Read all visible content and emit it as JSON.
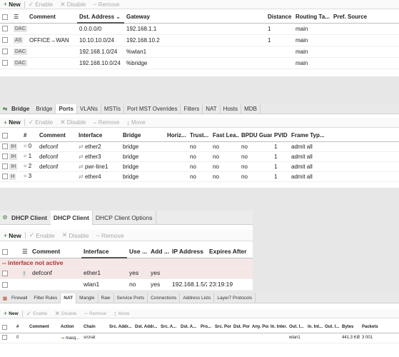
{
  "routes": {
    "toolbar": {
      "new": "New",
      "enable": "Enable",
      "disable": "Disable",
      "remove": "Remove"
    },
    "columns": [
      "",
      "",
      "Comment",
      "Dst. Address",
      "Gateway",
      "Distance",
      "Routing Ta...",
      "Pref. Source"
    ],
    "rows": [
      {
        "flag": "DAC",
        "comment": "",
        "dst": "0.0.0.0/0",
        "gateway": "192.168.1.1",
        "distance": "1",
        "table": "main",
        "pref": ""
      },
      {
        "flag": "AS",
        "comment": "OFFICE→WAN",
        "dst": "10.10.10.0/24",
        "gateway": "192.168.10.2",
        "distance": "1",
        "table": "main",
        "pref": ""
      },
      {
        "flag": "DAC",
        "comment": "",
        "dst": "192.168.1.0/24",
        "gateway": "%wlan1",
        "distance": "",
        "table": "main",
        "pref": ""
      },
      {
        "flag": "DAC",
        "comment": "",
        "dst": "192.168.10.0/24",
        "gateway": "%bridge",
        "distance": "",
        "table": "main",
        "pref": ""
      }
    ]
  },
  "bridge": {
    "title": "Bridge",
    "tabs": [
      "Bridge",
      "Ports",
      "VLANs",
      "MSTIs",
      "Port MST Overrides",
      "Filters",
      "NAT",
      "Hosts",
      "MDB"
    ],
    "active_tab": 1,
    "toolbar": {
      "new": "New",
      "enable": "Enable",
      "disable": "Disable",
      "remove": "Remove",
      "move": "Move"
    },
    "columns": [
      "",
      "#",
      "Comment",
      "Interface",
      "Bridge",
      "Horiz...",
      "Trust...",
      "Fast Lea...",
      "BPDU Guard",
      "PVID",
      "Frame Typ..."
    ],
    "rows": [
      {
        "flag": "IH",
        "num": "0",
        "comment": "defconf",
        "iface": "ether2",
        "bridge": "bridge",
        "horiz": "",
        "trust": "no",
        "fast": "no",
        "bpdu": "no",
        "pvid": "1",
        "frame": "admit all"
      },
      {
        "flag": "IH",
        "num": "1",
        "comment": "defconf",
        "iface": "ether3",
        "bridge": "bridge",
        "horiz": "",
        "trust": "no",
        "fast": "no",
        "bpdu": "no",
        "pvid": "1",
        "frame": "admit all"
      },
      {
        "flag": "IH",
        "num": "2",
        "comment": "defconf",
        "iface": "pwr-line1",
        "bridge": "bridge",
        "horiz": "",
        "trust": "no",
        "fast": "no",
        "bpdu": "no",
        "pvid": "1",
        "frame": "admit all"
      },
      {
        "flag": "H",
        "num": "3",
        "comment": "",
        "iface": "ether4",
        "bridge": "bridge",
        "horiz": "",
        "trust": "no",
        "fast": "no",
        "bpdu": "no",
        "pvid": "1",
        "frame": "admit all"
      }
    ]
  },
  "dhcp": {
    "title": "DHCP Client",
    "tabs": [
      "DHCP Client",
      "DHCP Client Options"
    ],
    "toolbar": {
      "new": "New",
      "enable": "Enable",
      "disable": "Disable",
      "remove": "Remove"
    },
    "columns": [
      "",
      "",
      "Comment",
      "Interface",
      "Use ...",
      "Add ...",
      "IP Address",
      "Expires After"
    ],
    "inactive_label": "-- interface not active",
    "rows": [
      {
        "flag": "I",
        "comment": "defconf",
        "iface": "ether1",
        "use": "yes",
        "add": "yes",
        "ip": "",
        "expires": "",
        "inactive": true
      },
      {
        "flag": "",
        "comment": "",
        "iface": "wlan1",
        "use": "no",
        "add": "yes",
        "ip": "192.168.1.5/24",
        "expires": "23:19:19",
        "inactive": false
      }
    ]
  },
  "firewall": {
    "title": "Firewall",
    "tabs": [
      "Filter Rules",
      "NAT",
      "Mangle",
      "Raw",
      "Service Ports",
      "Connections",
      "Address Lists",
      "Layer7 Protocols"
    ],
    "active_tab": 1,
    "toolbar": {
      "new": "New",
      "enable": "Enable",
      "disable": "Disable",
      "remove": "Remove",
      "move": "Move"
    },
    "columns": [
      "",
      "#",
      "Comment",
      "Action",
      "Chain",
      "Src. Addr...",
      "Dst. Addr...",
      "Src. A...",
      "Dst. A...",
      "Pro...",
      "Src. Port",
      "Dst. Port",
      "Any. Port",
      "In. Inter...",
      "Out. I...",
      "In. Int...",
      "Out. I...",
      "Bytes",
      "Packets"
    ],
    "rows": [
      {
        "num": "0",
        "comment": "",
        "action": "masq...",
        "chain": "srcnat",
        "out": "wlan1",
        "bytes": "441.3 KiB",
        "packets": "3 001"
      }
    ]
  }
}
